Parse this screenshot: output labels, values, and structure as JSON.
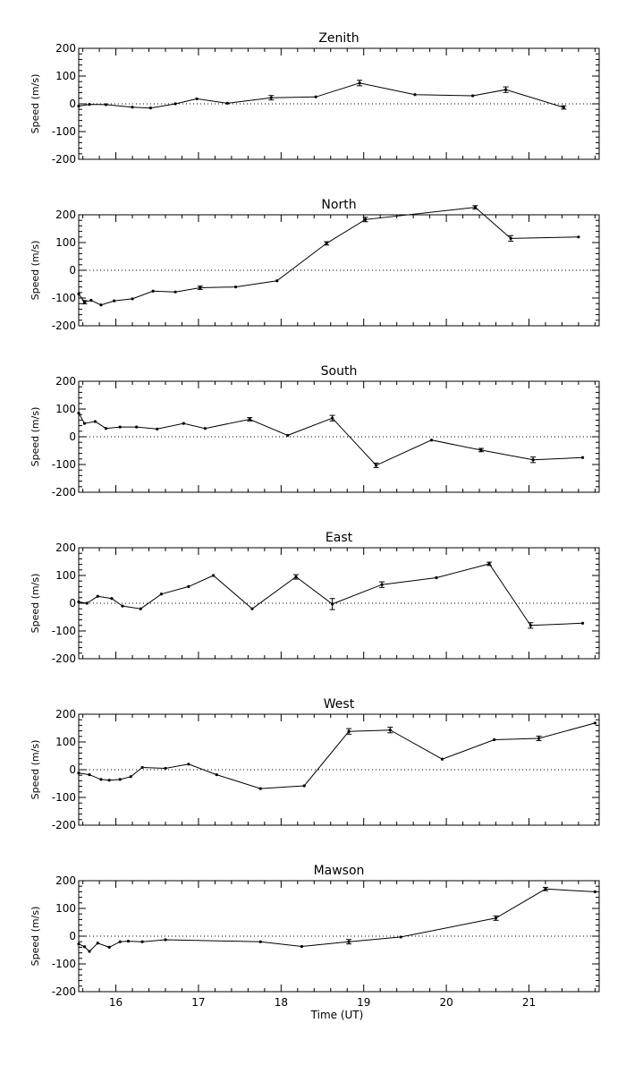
{
  "chart_data": [
    {
      "type": "line",
      "title": "Zenith",
      "ylabel": "Speed (m/s)",
      "xlim": [
        15.55,
        21.85
      ],
      "ylim": [
        -200,
        200
      ],
      "yticks": [
        200,
        100,
        0,
        -100,
        -200
      ],
      "x": [
        15.55,
        15.68,
        15.88,
        16.2,
        16.42,
        16.72,
        16.98,
        17.35,
        17.88,
        18.42,
        18.95,
        19.62,
        20.32,
        20.72,
        21.42
      ],
      "y": [
        -8,
        -2,
        -3,
        -12,
        -15,
        0,
        18,
        2,
        22,
        25,
        75,
        33,
        29,
        51,
        -13
      ],
      "err": [
        0,
        0,
        0,
        0,
        0,
        0,
        0,
        0,
        8,
        0,
        10,
        0,
        0,
        10,
        6
      ]
    },
    {
      "type": "line",
      "title": "North",
      "ylabel": "Speed (m/s)",
      "xlim": [
        15.55,
        21.85
      ],
      "ylim": [
        -200,
        200
      ],
      "yticks": [
        200,
        100,
        0,
        -100,
        -200
      ],
      "x": [
        15.55,
        15.62,
        15.7,
        15.82,
        15.98,
        16.2,
        16.45,
        16.72,
        17.02,
        17.45,
        17.95,
        18.55,
        19.02,
        20.35,
        20.78,
        21.6
      ],
      "y": [
        -85,
        -115,
        -108,
        -125,
        -110,
        -103,
        -75,
        -78,
        -63,
        -60,
        -38,
        97,
        183,
        227,
        115,
        120
      ],
      "err": [
        0,
        6,
        0,
        0,
        0,
        0,
        0,
        0,
        6,
        0,
        0,
        6,
        8,
        6,
        10,
        0
      ]
    },
    {
      "type": "line",
      "title": "South",
      "ylabel": "Speed (m/s)",
      "xlim": [
        15.55,
        21.85
      ],
      "ylim": [
        -200,
        200
      ],
      "yticks": [
        200,
        100,
        0,
        -100,
        -200
      ],
      "x": [
        15.55,
        15.62,
        15.75,
        15.88,
        16.05,
        16.25,
        16.5,
        16.82,
        17.08,
        17.62,
        18.08,
        18.62,
        19.15,
        19.82,
        20.42,
        21.05,
        21.65
      ],
      "y": [
        85,
        48,
        55,
        30,
        35,
        35,
        28,
        48,
        30,
        63,
        5,
        67,
        -103,
        -12,
        -48,
        -83,
        -75
      ],
      "err": [
        0,
        0,
        0,
        0,
        0,
        0,
        0,
        0,
        0,
        6,
        0,
        10,
        8,
        0,
        6,
        10,
        0
      ]
    },
    {
      "type": "line",
      "title": "East",
      "ylabel": "Speed (m/s)",
      "xlim": [
        15.55,
        21.85
      ],
      "ylim": [
        -200,
        200
      ],
      "yticks": [
        200,
        100,
        0,
        -100,
        -200
      ],
      "x": [
        15.55,
        15.65,
        15.78,
        15.95,
        16.08,
        16.3,
        16.55,
        16.88,
        17.18,
        17.65,
        18.18,
        18.62,
        19.22,
        19.88,
        20.52,
        21.02,
        21.65
      ],
      "y": [
        5,
        0,
        25,
        17,
        -10,
        -20,
        33,
        60,
        100,
        -20,
        95,
        -3,
        67,
        92,
        142,
        -80,
        -72
      ],
      "err": [
        0,
        0,
        0,
        0,
        0,
        0,
        0,
        0,
        0,
        0,
        8,
        20,
        10,
        0,
        6,
        10,
        0
      ]
    },
    {
      "type": "line",
      "title": "West",
      "ylabel": "Speed (m/s)",
      "xlim": [
        15.55,
        21.85
      ],
      "ylim": [
        -200,
        200
      ],
      "yticks": [
        200,
        100,
        0,
        -100,
        -200
      ],
      "x": [
        15.55,
        15.68,
        15.82,
        15.92,
        16.05,
        16.18,
        16.32,
        16.6,
        16.88,
        17.22,
        17.75,
        18.28,
        18.82,
        19.32,
        19.95,
        20.58,
        21.12,
        21.8
      ],
      "y": [
        -12,
        -18,
        -35,
        -38,
        -35,
        -25,
        8,
        5,
        20,
        -18,
        -68,
        -58,
        138,
        143,
        38,
        108,
        113,
        168
      ],
      "err": [
        0,
        0,
        0,
        0,
        0,
        0,
        0,
        0,
        0,
        0,
        0,
        0,
        10,
        10,
        0,
        0,
        8,
        0
      ]
    },
    {
      "type": "line",
      "title": "Mawson",
      "ylabel": "Speed (m/s)",
      "xlabel": "Time (UT)",
      "xlim": [
        15.55,
        21.85
      ],
      "ylim": [
        -200,
        200
      ],
      "yticks": [
        200,
        100,
        0,
        -100,
        -200
      ],
      "xticks": [
        16,
        17,
        18,
        19,
        20,
        21
      ],
      "x": [
        15.55,
        15.62,
        15.68,
        15.78,
        15.92,
        16.05,
        16.15,
        16.32,
        16.6,
        17.75,
        18.25,
        18.82,
        19.45,
        20.6,
        21.2,
        21.8
      ],
      "y": [
        -28,
        -38,
        -55,
        -25,
        -40,
        -20,
        -18,
        -20,
        -13,
        -20,
        -37,
        -20,
        -3,
        65,
        170,
        160
      ],
      "err": [
        0,
        0,
        0,
        0,
        0,
        0,
        0,
        0,
        0,
        0,
        0,
        8,
        0,
        8,
        6,
        0
      ]
    }
  ]
}
